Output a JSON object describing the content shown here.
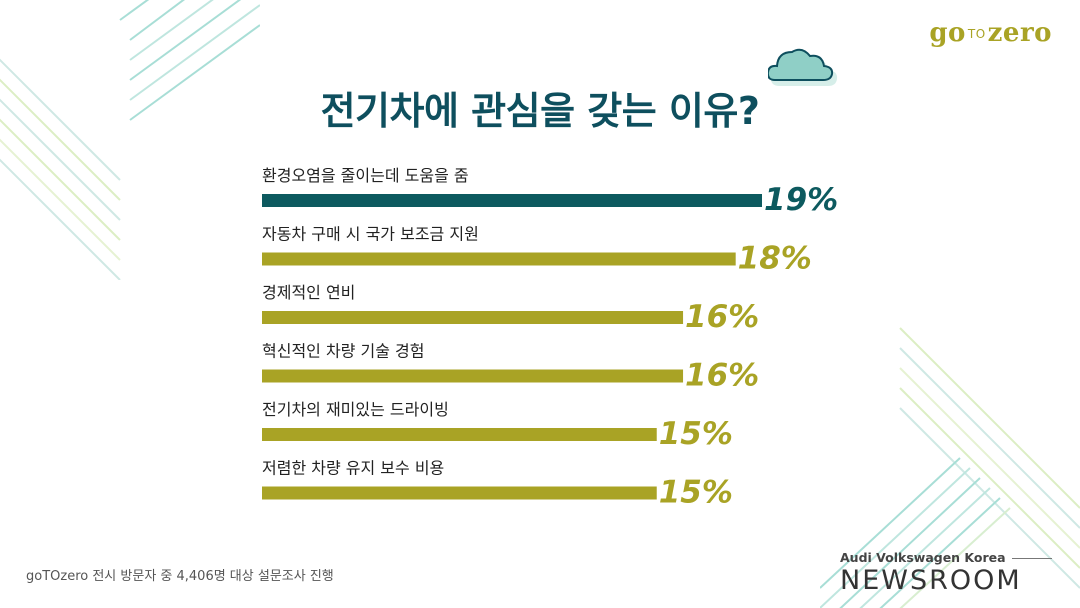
{
  "brand": {
    "go": "go",
    "to": "TO",
    "zero": "zero"
  },
  "footnote": "goTOzero 전시 방문자 중 4,406명 대상 설문조사 진행",
  "newsroom": {
    "subtitle": "Audi Volkswagen Korea",
    "title": "NEWSROOM"
  },
  "colors": {
    "title": "#0e4f5e",
    "highlight": "#0d5a5f",
    "bar": "#a9a325",
    "label": "#222222"
  },
  "chart_data": {
    "type": "bar",
    "orientation": "horizontal",
    "title": "전기차에 관심을 갖는 이유?",
    "unit": "%",
    "categories": [
      "환경오염을 줄이는데 도움을 줌",
      "자동차 구매 시 국가 보조금 지원",
      "경제적인 연비",
      "혁신적인 차량 기술 경험",
      "전기차의 재미있는 드라이빙",
      "저렴한 차량 유지 보수 비용"
    ],
    "values": [
      19,
      18,
      16,
      16,
      15,
      15
    ],
    "data_labels": [
      "19%",
      "18%",
      "16%",
      "16%",
      "15%",
      "15%"
    ],
    "highlight_index": 0,
    "xlim": [
      0,
      19
    ],
    "grid": false,
    "legend": "none"
  }
}
